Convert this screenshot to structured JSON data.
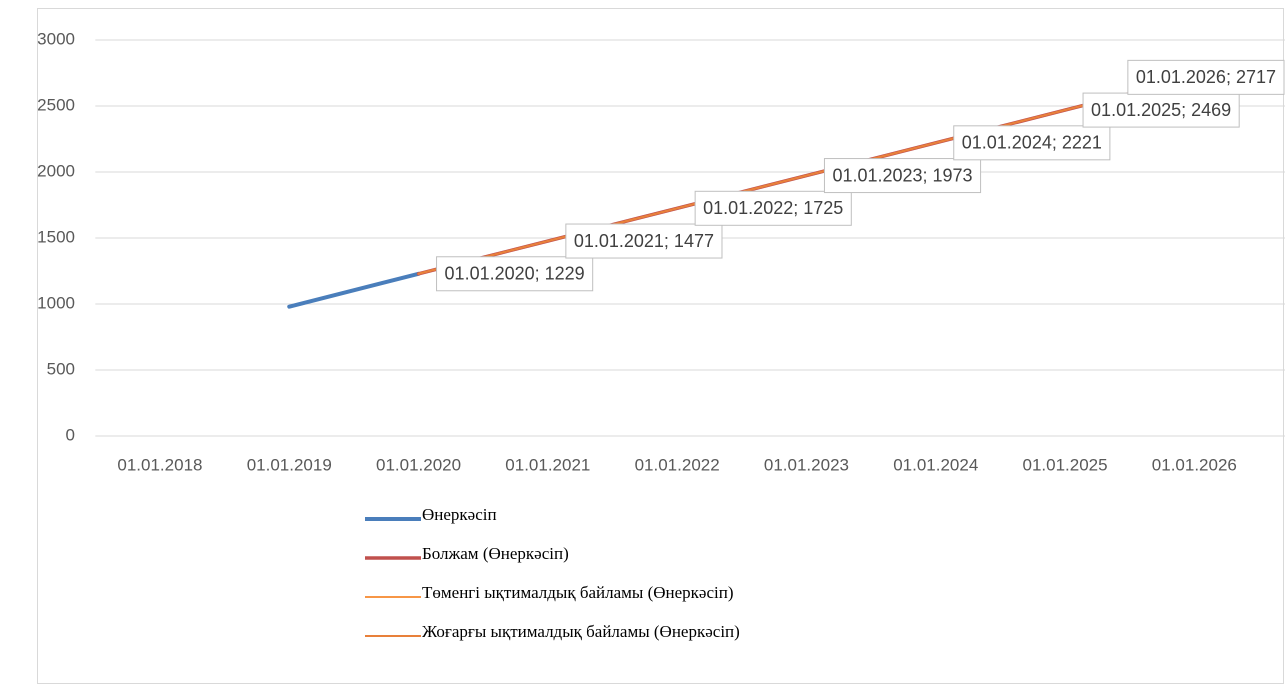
{
  "chart_data": {
    "type": "line",
    "categories": [
      "01.01.2018",
      "01.01.2019",
      "01.01.2020",
      "01.01.2021",
      "01.01.2022",
      "01.01.2023",
      "01.01.2024",
      "01.01.2025",
      "01.01.2026"
    ],
    "series": [
      {
        "name": "Өнеркәсіп",
        "color": "#4a7ebb",
        "values": [
          null,
          980,
          1229,
          null,
          null,
          null,
          null,
          null,
          null
        ]
      },
      {
        "name": "Болжам (Өнеркәсіп)",
        "color": "#c0504d",
        "values": [
          null,
          null,
          1229,
          1477,
          1725,
          1973,
          2221,
          2469,
          2717
        ],
        "value_labels": [
          null,
          null,
          "01.01.2020; 1229",
          "01.01.2021; 1477",
          "01.01.2022; 1725",
          "01.01.2023; 1973",
          "01.01.2024; 2221",
          "01.01.2025; 2469",
          "01.01.2026; 2717"
        ]
      },
      {
        "name": "Төменгі ықтималдық байламы (Өнеркәсіп)",
        "color": "#f79646",
        "values": [
          null,
          null,
          1229,
          1477,
          1725,
          1973,
          2221,
          2469,
          2717
        ]
      },
      {
        "name": "Жоғарғы ықтималдық байламы (Өнеркәсіп)",
        "color": "#e8803a",
        "values": [
          null,
          null,
          1229,
          1477,
          1725,
          1973,
          2221,
          2469,
          2717
        ]
      }
    ],
    "ylim": [
      0,
      3000
    ],
    "yticks": [
      0,
      500,
      1000,
      1500,
      2000,
      2500,
      3000
    ],
    "grid": true,
    "legend": "bottom"
  }
}
